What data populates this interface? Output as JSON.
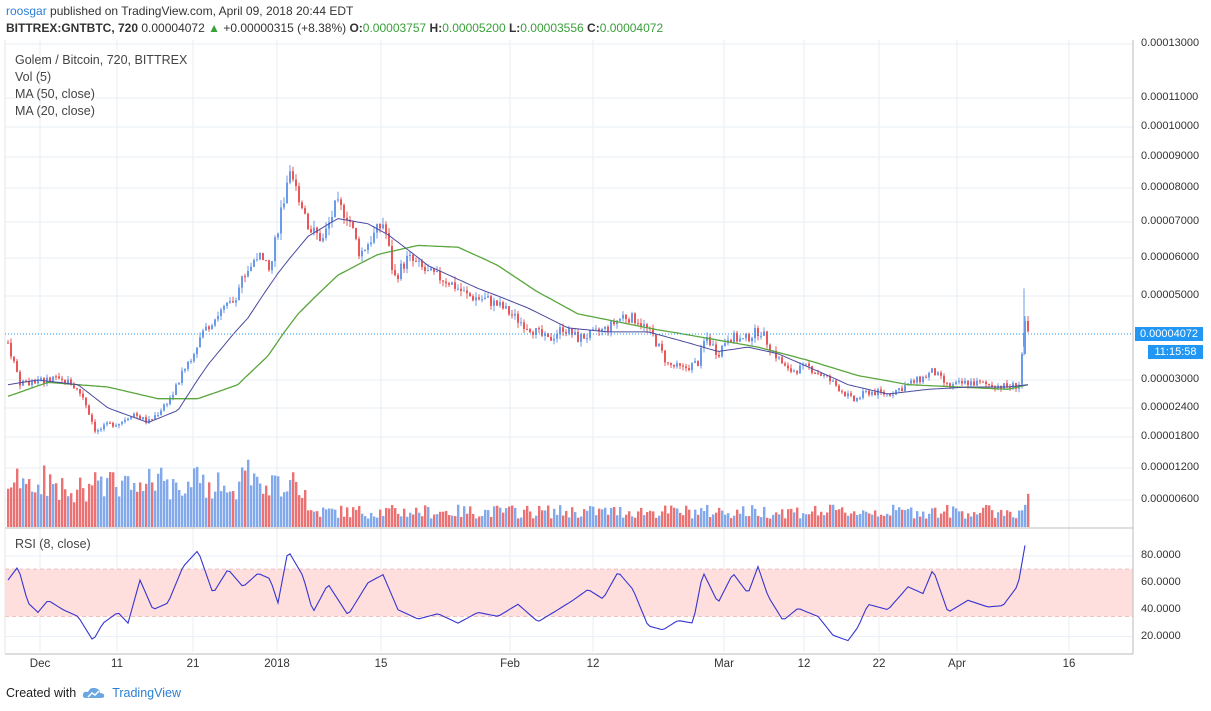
{
  "header": {
    "author": "roosgar",
    "published": "published on TradingView.com, April 09, 2018 20:44 EDT",
    "symbol": "BITTREX:GNTBTC, 720",
    "last": "0.00004072",
    "change_arrow": "▲",
    "change": "+0.00000315 (+8.38%)",
    "o_label": "O:",
    "o_value": "0.00003757",
    "h_label": "H:",
    "h_value": "0.00005200",
    "l_label": "L:",
    "l_value": "0.00003556",
    "c_label": "C:",
    "c_value": "0.00004072"
  },
  "legend": {
    "line1": "Golem / Bitcoin, 720, BITTREX",
    "line2": "Vol (5)",
    "line3": "MA (50, close)",
    "line4": "MA (20, close)",
    "rsi": "RSI (8, close)"
  },
  "tags": {
    "price": "0.00004072",
    "time": "11:15:58"
  },
  "footer": {
    "created_with": "Created with",
    "brand": "TradingView"
  },
  "colors": {
    "up": "#6b9ae8",
    "down": "#e8585a",
    "ma50": "#5aa63c",
    "ma20": "#4a4aa0",
    "rsi": "#3535d0",
    "band": "#ffdede",
    "accent": "#2196f3"
  },
  "chart_data": {
    "type": "candlestick",
    "title": "Golem / Bitcoin, 720, BITTREX",
    "price_axis_ticks": [
      "0.00013000",
      "0.00011000",
      "0.00010000",
      "0.00009000",
      "0.00008000",
      "0.00007000",
      "0.00006000",
      "0.00005000",
      "0.00003000",
      "0.00002400",
      "0.00001800",
      "0.00001200",
      "0.00000600"
    ],
    "price_ticks_value": [
      0.00013,
      0.00011,
      0.0001,
      9e-05,
      8e-05,
      7e-05,
      6e-05,
      5e-05,
      3e-05,
      2.4e-05,
      1.8e-05,
      1.2e-05,
      6e-06
    ],
    "rsi_axis_ticks": [
      "80.0000",
      "60.0000",
      "40.0000",
      "20.0000"
    ],
    "rsi_ticks_value": [
      80,
      60,
      40,
      20
    ],
    "rsi_band": [
      35,
      70
    ],
    "time_axis_ticks": [
      "Dec",
      "11",
      "21",
      "2018",
      "15",
      "Feb",
      "12",
      "Mar",
      "12",
      "22",
      "Apr",
      "16"
    ],
    "price_path_anchors": [
      [
        0,
        3.85e-05
      ],
      [
        12,
        2.95e-05
      ],
      [
        30,
        2.98e-05
      ],
      [
        45,
        3e-05
      ],
      [
        62,
        2.95e-05
      ],
      [
        75,
        2.65e-05
      ],
      [
        88,
        1.9e-05
      ],
      [
        100,
        2.05e-05
      ],
      [
        112,
        2.1e-05
      ],
      [
        125,
        2.3e-05
      ],
      [
        140,
        2.1e-05
      ],
      [
        150,
        2.3e-05
      ],
      [
        165,
        2.7e-05
      ],
      [
        180,
        3.4e-05
      ],
      [
        195,
        4.1e-05
      ],
      [
        210,
        4.55e-05
      ],
      [
        225,
        4.85e-05
      ],
      [
        235,
        5.5e-05
      ],
      [
        250,
        6.1e-05
      ],
      [
        262,
        5.6e-05
      ],
      [
        272,
        7.2e-05
      ],
      [
        282,
        8.3e-05
      ],
      [
        292,
        7.7e-05
      ],
      [
        302,
        6.8e-05
      ],
      [
        315,
        6.5e-05
      ],
      [
        328,
        7.5e-05
      ],
      [
        340,
        7.2e-05
      ],
      [
        352,
        6.1e-05
      ],
      [
        362,
        6.5e-05
      ],
      [
        376,
        7e-05
      ],
      [
        386,
        5.45e-05
      ],
      [
        400,
        6e-05
      ],
      [
        420,
        5.6e-05
      ],
      [
        440,
        5.4e-05
      ],
      [
        460,
        5e-05
      ],
      [
        480,
        4.9e-05
      ],
      [
        495,
        4.7e-05
      ],
      [
        510,
        4.4e-05
      ],
      [
        525,
        4.15e-05
      ],
      [
        540,
        3.9e-05
      ],
      [
        555,
        4.2e-05
      ],
      [
        570,
        3.95e-05
      ],
      [
        585,
        4.05e-05
      ],
      [
        600,
        4.2e-05
      ],
      [
        615,
        4.5e-05
      ],
      [
        630,
        4.4e-05
      ],
      [
        645,
        4e-05
      ],
      [
        660,
        3.35e-05
      ],
      [
        675,
        3.25e-05
      ],
      [
        690,
        3.4e-05
      ],
      [
        698,
        4e-05
      ],
      [
        710,
        3.6e-05
      ],
      [
        720,
        4e-05
      ],
      [
        735,
        3.9e-05
      ],
      [
        752,
        4.15e-05
      ],
      [
        765,
        3.65e-05
      ],
      [
        780,
        3.2e-05
      ],
      [
        800,
        3.3e-05
      ],
      [
        815,
        3.1e-05
      ],
      [
        830,
        2.85e-05
      ],
      [
        845,
        2.55e-05
      ],
      [
        860,
        2.75e-05
      ],
      [
        880,
        2.7e-05
      ],
      [
        900,
        2.9e-05
      ],
      [
        915,
        3.05e-05
      ],
      [
        925,
        3.2e-05
      ],
      [
        940,
        2.85e-05
      ],
      [
        960,
        2.95e-05
      ],
      [
        980,
        2.9e-05
      ],
      [
        1000,
        2.85e-05
      ],
      [
        1012,
        2.9e-05
      ],
      [
        1016,
        4.5e-05
      ],
      [
        1020,
        4.072e-05
      ]
    ],
    "ma20_anchors": [
      [
        0,
        2.9e-05
      ],
      [
        30,
        3e-05
      ],
      [
        70,
        2.9e-05
      ],
      [
        100,
        2.4e-05
      ],
      [
        140,
        2.1e-05
      ],
      [
        170,
        2.35e-05
      ],
      [
        200,
        3.35e-05
      ],
      [
        240,
        4.45e-05
      ],
      [
        270,
        5.6e-05
      ],
      [
        300,
        6.6e-05
      ],
      [
        330,
        7.1e-05
      ],
      [
        360,
        6.95e-05
      ],
      [
        380,
        6.65e-05
      ],
      [
        420,
        5.8e-05
      ],
      [
        470,
        5.2e-05
      ],
      [
        520,
        4.7e-05
      ],
      [
        560,
        4.2e-05
      ],
      [
        600,
        4.1e-05
      ],
      [
        640,
        4.1e-05
      ],
      [
        680,
        3.85e-05
      ],
      [
        710,
        3.65e-05
      ],
      [
        740,
        3.75e-05
      ],
      [
        770,
        3.6e-05
      ],
      [
        800,
        3.3e-05
      ],
      [
        840,
        2.9e-05
      ],
      [
        880,
        2.7e-05
      ],
      [
        920,
        2.8e-05
      ],
      [
        960,
        2.85e-05
      ],
      [
        1000,
        2.85e-05
      ],
      [
        1020,
        2.9e-05
      ]
    ],
    "ma50_anchors": [
      [
        0,
        2.65e-05
      ],
      [
        40,
        2.95e-05
      ],
      [
        100,
        2.85e-05
      ],
      [
        150,
        2.6e-05
      ],
      [
        190,
        2.6e-05
      ],
      [
        230,
        2.9e-05
      ],
      [
        260,
        3.55e-05
      ],
      [
        290,
        4.55e-05
      ],
      [
        330,
        5.55e-05
      ],
      [
        370,
        6.1e-05
      ],
      [
        410,
        6.35e-05
      ],
      [
        450,
        6.3e-05
      ],
      [
        490,
        5.8e-05
      ],
      [
        530,
        5.1e-05
      ],
      [
        570,
        4.55e-05
      ],
      [
        610,
        4.35e-05
      ],
      [
        650,
        4.15e-05
      ],
      [
        700,
        3.95e-05
      ],
      [
        750,
        3.75e-05
      ],
      [
        800,
        3.45e-05
      ],
      [
        850,
        3.1e-05
      ],
      [
        900,
        2.9e-05
      ],
      [
        950,
        2.85e-05
      ],
      [
        1000,
        2.8e-05
      ],
      [
        1020,
        2.9e-05
      ]
    ],
    "volume_peaks": [
      [
        8,
        0.09
      ],
      [
        40,
        0.065
      ],
      [
        190,
        0.075
      ],
      [
        240,
        0.115
      ],
      [
        283,
        0.07
      ],
      [
        1020,
        0.05
      ]
    ],
    "rsi_anchors": [
      [
        0,
        62
      ],
      [
        10,
        72
      ],
      [
        20,
        45
      ],
      [
        30,
        38
      ],
      [
        40,
        47
      ],
      [
        55,
        40
      ],
      [
        70,
        35
      ],
      [
        85,
        17
      ],
      [
        95,
        30
      ],
      [
        110,
        38
      ],
      [
        120,
        30
      ],
      [
        132,
        62
      ],
      [
        145,
        40
      ],
      [
        160,
        45
      ],
      [
        175,
        72
      ],
      [
        190,
        84
      ],
      [
        205,
        52
      ],
      [
        220,
        70
      ],
      [
        235,
        57
      ],
      [
        250,
        67
      ],
      [
        262,
        63
      ],
      [
        270,
        45
      ],
      [
        280,
        84
      ],
      [
        295,
        65
      ],
      [
        305,
        38
      ],
      [
        320,
        59
      ],
      [
        340,
        36
      ],
      [
        360,
        60
      ],
      [
        375,
        66
      ],
      [
        390,
        40
      ],
      [
        410,
        33
      ],
      [
        430,
        37
      ],
      [
        450,
        30
      ],
      [
        470,
        38
      ],
      [
        490,
        35
      ],
      [
        510,
        44
      ],
      [
        530,
        31
      ],
      [
        550,
        40
      ],
      [
        565,
        47
      ],
      [
        580,
        55
      ],
      [
        595,
        48
      ],
      [
        610,
        68
      ],
      [
        625,
        55
      ],
      [
        640,
        28
      ],
      [
        655,
        25
      ],
      [
        670,
        32
      ],
      [
        685,
        30
      ],
      [
        695,
        68
      ],
      [
        710,
        45
      ],
      [
        725,
        67
      ],
      [
        740,
        52
      ],
      [
        750,
        72
      ],
      [
        760,
        50
      ],
      [
        775,
        32
      ],
      [
        790,
        41
      ],
      [
        810,
        35
      ],
      [
        825,
        21
      ],
      [
        840,
        17
      ],
      [
        850,
        27
      ],
      [
        860,
        44
      ],
      [
        880,
        40
      ],
      [
        900,
        57
      ],
      [
        915,
        52
      ],
      [
        925,
        70
      ],
      [
        940,
        38
      ],
      [
        960,
        47
      ],
      [
        980,
        42
      ],
      [
        995,
        43
      ],
      [
        1010,
        58
      ],
      [
        1018,
        92
      ]
    ]
  }
}
